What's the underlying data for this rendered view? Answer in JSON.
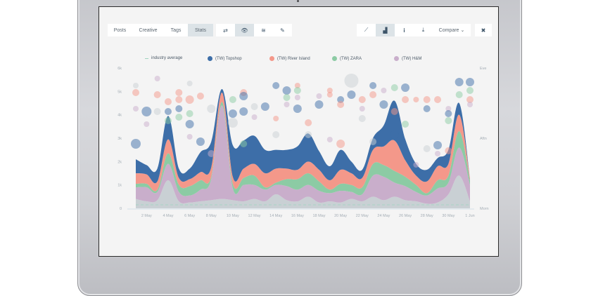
{
  "toolbar": {
    "tabs": [
      {
        "label": "Posts",
        "active": false
      },
      {
        "label": "Creative",
        "active": false
      },
      {
        "label": "Tags",
        "active": false
      },
      {
        "label": "Stats",
        "active": true
      }
    ],
    "view_icons": [
      {
        "icon": "retweet-icon",
        "glyph": "⇄",
        "active": false
      },
      {
        "icon": "eye-icon",
        "glyph": "👁",
        "active": true
      },
      {
        "icon": "wifi-icon",
        "glyph": "≋",
        "active": false
      },
      {
        "icon": "pen-icon",
        "glyph": "✎",
        "active": false
      }
    ],
    "chart_icons": [
      {
        "icon": "line-chart-icon",
        "glyph": "⟋",
        "active": false
      },
      {
        "icon": "area-chart-icon",
        "glyph": "▟",
        "active": true
      },
      {
        "icon": "info-icon",
        "glyph": "i",
        "active": false
      },
      {
        "icon": "download-icon",
        "glyph": "⤓",
        "active": false
      }
    ],
    "compare_label": "Compare",
    "compare_chevron": "⌄",
    "close_glyph": "✖"
  },
  "colors": {
    "topshop": "#3d6ea8",
    "river_island": "#f4988a",
    "zara": "#8ccba4",
    "hm": "#c9aecb",
    "baseline": "#c9d0d4",
    "industry_average": "#9fd3bf",
    "axis_text": "#a4adb5"
  },
  "chart_data": {
    "type": "area",
    "stacked": true,
    "title": "",
    "xlabel": "",
    "ylabel": "",
    "x": [
      1,
      2,
      3,
      4,
      5,
      6,
      7,
      8,
      9,
      10,
      11,
      12,
      13,
      14,
      15,
      16,
      17,
      18,
      19,
      20,
      21,
      22,
      23,
      24,
      25,
      26,
      27,
      28,
      29,
      30,
      31,
      32
    ],
    "x_tick_labels": [
      "2 May",
      "4 May",
      "6 May",
      "8 May",
      "10 May",
      "12 May",
      "14 May",
      "16 May",
      "18 May",
      "20 May",
      "22 May",
      "24 May",
      "26 May",
      "28 May",
      "30 May",
      "1 Jun"
    ],
    "x_tick_days": [
      2,
      4,
      6,
      8,
      10,
      12,
      14,
      16,
      18,
      20,
      22,
      24,
      26,
      28,
      30,
      32
    ],
    "y_tick_labels": [
      "0",
      "1k",
      "2k",
      "3k",
      "4k",
      "5k",
      "6k"
    ],
    "ylim": [
      0,
      6000
    ],
    "y2_tick_labels": [
      "Morn",
      "Aftn",
      "Eve"
    ],
    "y2lim": [
      0,
      2
    ],
    "legend": [
      {
        "label": "industry average",
        "key": "industry_average",
        "marker": "dash"
      },
      {
        "label": "(TW) Topshop",
        "key": "topshop",
        "marker": "dot"
      },
      {
        "label": "(TW) River Island",
        "key": "river_island",
        "marker": "dot"
      },
      {
        "label": "(TW) ZARA",
        "key": "zara",
        "marker": "dot"
      },
      {
        "label": "(TW) H&M",
        "key": "hm",
        "marker": "dot"
      }
    ],
    "legend_position": "top",
    "industry_average": 150,
    "series": [
      {
        "name": "baseline",
        "key": "baseline",
        "values": [
          400,
          300,
          350,
          1200,
          300,
          250,
          300,
          350,
          400,
          350,
          300,
          400,
          300,
          600,
          350,
          300,
          500,
          250,
          300,
          250,
          400,
          300,
          500,
          350,
          500,
          350,
          300,
          200,
          250,
          600,
          1400,
          300
        ]
      },
      {
        "name": "(TW) H&M",
        "key": "hm",
        "values": [
          500,
          600,
          350,
          700,
          400,
          300,
          500,
          900,
          4000,
          500,
          700,
          600,
          500,
          400,
          600,
          500,
          500,
          500,
          350,
          500,
          300,
          300,
          900,
          1000,
          600,
          600,
          400,
          350,
          600,
          500,
          1200,
          700
        ]
      },
      {
        "name": "(TW) ZARA",
        "key": "zara",
        "values": [
          150,
          150,
          100,
          450,
          300,
          400,
          400,
          100,
          150,
          200,
          300,
          400,
          100,
          100,
          300,
          450,
          500,
          400,
          150,
          300,
          300,
          300,
          500,
          500,
          500,
          400,
          300,
          100,
          350,
          300,
          700,
          200
        ]
      },
      {
        "name": "(TW) River Island",
        "key": "river_island",
        "values": [
          450,
          400,
          350,
          600,
          300,
          300,
          350,
          400,
          400,
          300,
          400,
          500,
          600,
          600,
          450,
          400,
          500,
          500,
          400,
          600,
          500,
          400,
          600,
          800,
          1300,
          700,
          400,
          500,
          600,
          500,
          700,
          100
        ]
      },
      {
        "name": "(TW) Topshop",
        "key": "topshop",
        "values": [
          600,
          400,
          550,
          1000,
          400,
          450,
          850,
          1100,
          150,
          1350,
          1200,
          1200,
          1000,
          800,
          800,
          1000,
          1200,
          800,
          600,
          850,
          500,
          350,
          500,
          900,
          1700,
          900,
          500,
          500,
          350,
          600,
          500,
          0
        ]
      }
    ],
    "bubbles": [
      {
        "day": 1,
        "time": 1.75,
        "key": "baseline",
        "r": 4
      },
      {
        "day": 1,
        "time": 1.65,
        "key": "river_island",
        "r": 5
      },
      {
        "day": 1,
        "time": 1.42,
        "key": "hm",
        "r": 4
      },
      {
        "day": 1,
        "time": 0.92,
        "key": "topshop",
        "r": 7
      },
      {
        "day": 2,
        "time": 1.2,
        "key": "hm",
        "r": 4
      },
      {
        "day": 2,
        "time": 1.38,
        "key": "topshop",
        "r": 7
      },
      {
        "day": 3,
        "time": 1.62,
        "key": "river_island",
        "r": 5
      },
      {
        "day": 3,
        "time": 1.85,
        "key": "hm",
        "r": 4
      },
      {
        "day": 3,
        "time": 1.38,
        "key": "baseline",
        "r": 5
      },
      {
        "day": 4,
        "time": 1.52,
        "key": "river_island",
        "r": 5
      },
      {
        "day": 4,
        "time": 1.38,
        "key": "topshop",
        "r": 5
      },
      {
        "day": 4,
        "time": 1.25,
        "key": "zara",
        "r": 5
      },
      {
        "day": 4,
        "time": 1.05,
        "key": "topshop",
        "r": 6
      },
      {
        "day": 5,
        "time": 1.65,
        "key": "river_island",
        "r": 5
      },
      {
        "day": 5,
        "time": 1.55,
        "key": "river_island",
        "r": 5
      },
      {
        "day": 5,
        "time": 1.42,
        "key": "topshop",
        "r": 5
      },
      {
        "day": 5,
        "time": 1.3,
        "key": "zara",
        "r": 5
      },
      {
        "day": 6,
        "time": 1.78,
        "key": "baseline",
        "r": 4
      },
      {
        "day": 6,
        "time": 1.55,
        "key": "river_island",
        "r": 6
      },
      {
        "day": 6,
        "time": 1.35,
        "key": "zara",
        "r": 5
      },
      {
        "day": 6,
        "time": 1.2,
        "key": "topshop",
        "r": 6
      },
      {
        "day": 6,
        "time": 1.02,
        "key": "hm",
        "r": 4
      },
      {
        "day": 7,
        "time": 1.6,
        "key": "river_island",
        "r": 5
      },
      {
        "day": 7,
        "time": 0.95,
        "key": "topshop",
        "r": 6
      },
      {
        "day": 8,
        "time": 1.42,
        "key": "baseline",
        "r": 6
      },
      {
        "day": 8,
        "time": 0.78,
        "key": "hm",
        "r": 5
      },
      {
        "day": 9,
        "time": 0.42,
        "key": "hm",
        "r": 5
      },
      {
        "day": 10,
        "time": 1.55,
        "key": "zara",
        "r": 5
      },
      {
        "day": 10,
        "time": 1.35,
        "key": "topshop",
        "r": 6
      },
      {
        "day": 10,
        "time": 1.22,
        "key": "baseline",
        "r": 7
      },
      {
        "day": 11,
        "time": 1.65,
        "key": "river_island",
        "r": 5
      },
      {
        "day": 11,
        "time": 1.6,
        "key": "topshop",
        "r": 6
      },
      {
        "day": 11,
        "time": 1.38,
        "key": "topshop",
        "r": 6
      },
      {
        "day": 11,
        "time": 0.92,
        "key": "zara",
        "r": 5
      },
      {
        "day": 12,
        "time": 1.45,
        "key": "baseline",
        "r": 5
      },
      {
        "day": 12,
        "time": 1.3,
        "key": "hm",
        "r": 4
      },
      {
        "day": 13,
        "time": 1.45,
        "key": "topshop",
        "r": 6
      },
      {
        "day": 14,
        "time": 1.75,
        "key": "topshop",
        "r": 5
      },
      {
        "day": 14,
        "time": 1.28,
        "key": "river_island",
        "r": 4
      },
      {
        "day": 14,
        "time": 1.05,
        "key": "baseline",
        "r": 5
      },
      {
        "day": 15,
        "time": 1.68,
        "key": "topshop",
        "r": 6
      },
      {
        "day": 15,
        "time": 1.58,
        "key": "zara",
        "r": 5
      },
      {
        "day": 15,
        "time": 1.48,
        "key": "hm",
        "r": 4
      },
      {
        "day": 16,
        "time": 1.75,
        "key": "river_island",
        "r": 4
      },
      {
        "day": 16,
        "time": 1.68,
        "key": "zara",
        "r": 5
      },
      {
        "day": 16,
        "time": 1.58,
        "key": "hm",
        "r": 4
      },
      {
        "day": 16,
        "time": 1.42,
        "key": "topshop",
        "r": 6
      },
      {
        "day": 17,
        "time": 1.22,
        "key": "river_island",
        "r": 5
      },
      {
        "day": 17,
        "time": 1.05,
        "key": "baseline",
        "r": 5
      },
      {
        "day": 18,
        "time": 1.6,
        "key": "hm",
        "r": 4
      },
      {
        "day": 18,
        "time": 1.48,
        "key": "topshop",
        "r": 6
      },
      {
        "day": 19,
        "time": 1.68,
        "key": "river_island",
        "r": 4
      },
      {
        "day": 19,
        "time": 1.62,
        "key": "river_island",
        "r": 4
      },
      {
        "day": 19,
        "time": 0.98,
        "key": "hm",
        "r": 4
      },
      {
        "day": 20,
        "time": 1.55,
        "key": "topshop",
        "r": 5
      },
      {
        "day": 20,
        "time": 1.48,
        "key": "river_island",
        "r": 5
      },
      {
        "day": 20,
        "time": 0.92,
        "key": "river_island",
        "r": 6
      },
      {
        "day": 21,
        "time": 1.82,
        "key": "baseline",
        "r": 10
      },
      {
        "day": 21,
        "time": 1.62,
        "key": "topshop",
        "r": 6
      },
      {
        "day": 22,
        "time": 1.55,
        "key": "river_island",
        "r": 5
      },
      {
        "day": 22,
        "time": 1.42,
        "key": "hm",
        "r": 4
      },
      {
        "day": 22,
        "time": 1.28,
        "key": "baseline",
        "r": 5
      },
      {
        "day": 23,
        "time": 1.75,
        "key": "topshop",
        "r": 5
      },
      {
        "day": 23,
        "time": 1.62,
        "key": "river_island",
        "r": 5
      },
      {
        "day": 23,
        "time": 0.95,
        "key": "baseline",
        "r": 5
      },
      {
        "day": 24,
        "time": 1.68,
        "key": "hm",
        "r": 4
      },
      {
        "day": 24,
        "time": 1.48,
        "key": "topshop",
        "r": 6
      },
      {
        "day": 25,
        "time": 1.72,
        "key": "zara",
        "r": 5
      },
      {
        "day": 25,
        "time": 1.38,
        "key": "river_island",
        "r": 5
      },
      {
        "day": 25,
        "time": 1.05,
        "key": "topshop",
        "r": 6
      },
      {
        "day": 26,
        "time": 1.72,
        "key": "topshop",
        "r": 6
      },
      {
        "day": 26,
        "time": 1.55,
        "key": "river_island",
        "r": 5
      },
      {
        "day": 26,
        "time": 1.2,
        "key": "zara",
        "r": 5
      },
      {
        "day": 27,
        "time": 1.55,
        "key": "river_island",
        "r": 4
      },
      {
        "day": 27,
        "time": 0.62,
        "key": "hm",
        "r": 4
      },
      {
        "day": 28,
        "time": 1.55,
        "key": "river_island",
        "r": 5
      },
      {
        "day": 28,
        "time": 1.42,
        "key": "topshop",
        "r": 5
      },
      {
        "day": 28,
        "time": 0.85,
        "key": "baseline",
        "r": 5
      },
      {
        "day": 29,
        "time": 1.55,
        "key": "river_island",
        "r": 5
      },
      {
        "day": 29,
        "time": 0.9,
        "key": "topshop",
        "r": 6
      },
      {
        "day": 29,
        "time": 0.78,
        "key": "hm",
        "r": 4
      },
      {
        "day": 30,
        "time": 1.42,
        "key": "hm",
        "r": 4
      },
      {
        "day": 30,
        "time": 1.35,
        "key": "topshop",
        "r": 5
      },
      {
        "day": 30,
        "time": 1.25,
        "key": "zara",
        "r": 5
      },
      {
        "day": 30,
        "time": 0.82,
        "key": "river_island",
        "r": 5
      },
      {
        "day": 31,
        "time": 1.8,
        "key": "topshop",
        "r": 6
      },
      {
        "day": 31,
        "time": 1.62,
        "key": "zara",
        "r": 5
      },
      {
        "day": 32,
        "time": 1.8,
        "key": "topshop",
        "r": 6
      },
      {
        "day": 32,
        "time": 1.68,
        "key": "zara",
        "r": 5
      },
      {
        "day": 32,
        "time": 1.55,
        "key": "river_island",
        "r": 5
      },
      {
        "day": 32,
        "time": 1.48,
        "key": "hm",
        "r": 4
      }
    ]
  }
}
